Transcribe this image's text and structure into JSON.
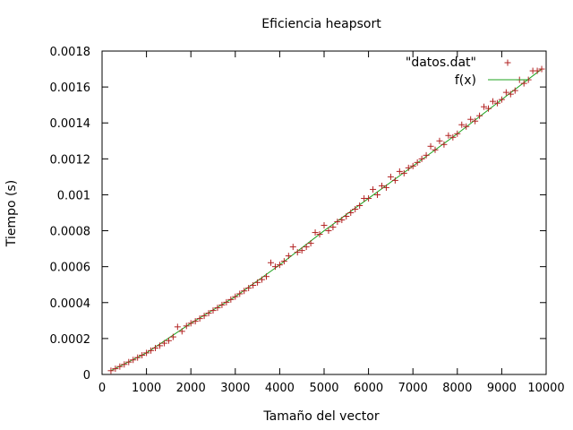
{
  "chart_data": {
    "type": "scatter",
    "title": "Eficiencia heapsort",
    "xlabel": "Tamaño del vector",
    "ylabel": "Tiempo (s)",
    "xlim": [
      0,
      10000
    ],
    "ylim": [
      0,
      0.0018
    ],
    "xticks": [
      "0",
      "1000",
      "2000",
      "3000",
      "4000",
      "5000",
      "6000",
      "7000",
      "8000",
      "9000",
      "10000"
    ],
    "yticks": [
      "0",
      "0.0002",
      "0.0004",
      "0.0006",
      "0.0008",
      "0.001",
      "0.0012",
      "0.0014",
      "0.0016",
      "0.0018"
    ],
    "grid": false,
    "legend_position": "top-right",
    "colors": {
      "points": "#b22222",
      "fit": "#1fa31f"
    },
    "series": [
      {
        "name": "\"datos.dat\"",
        "kind": "points",
        "marker": "plus",
        "x": [
          200,
          300,
          400,
          500,
          600,
          700,
          800,
          900,
          1000,
          1100,
          1200,
          1300,
          1400,
          1500,
          1600,
          1700,
          1800,
          1900,
          2000,
          2100,
          2200,
          2300,
          2400,
          2500,
          2600,
          2700,
          2800,
          2900,
          3000,
          3100,
          3200,
          3300,
          3400,
          3500,
          3600,
          3700,
          3800,
          3900,
          4000,
          4100,
          4200,
          4300,
          4400,
          4500,
          4600,
          4700,
          4800,
          4900,
          5000,
          5100,
          5200,
          5300,
          5400,
          5500,
          5600,
          5700,
          5800,
          5900,
          6000,
          6100,
          6200,
          6300,
          6400,
          6500,
          6600,
          6700,
          6800,
          6900,
          7000,
          7100,
          7200,
          7300,
          7400,
          7500,
          7600,
          7700,
          7800,
          7900,
          8000,
          8100,
          8200,
          8300,
          8400,
          8500,
          8600,
          8700,
          8800,
          8900,
          9000,
          9100,
          9200,
          9300,
          9400,
          9500,
          9600,
          9700,
          9800,
          9900
        ],
        "y": [
          2.1e-05,
          3.2e-05,
          4.4e-05,
          5.6e-05,
          6.9e-05,
          8.1e-05,
          9.4e-05,
          0.000107,
          0.00012,
          0.000133,
          0.000147,
          0.00016,
          0.000174,
          0.000188,
          0.000209,
          0.000265,
          0.00024,
          0.00027,
          0.000285,
          0.000296,
          0.000311,
          0.000326,
          0.000341,
          0.000356,
          0.000371,
          0.000387,
          0.000402,
          0.000417,
          0.000433,
          0.000449,
          0.000465,
          0.000481,
          0.000496,
          0.000512,
          0.000528,
          0.000545,
          0.000622,
          0.0006,
          0.00061,
          0.00063,
          0.00066,
          0.00071,
          0.00068,
          0.00069,
          0.00071,
          0.00073,
          0.00079,
          0.00078,
          0.00083,
          0.0008,
          0.00082,
          0.00085,
          0.00086,
          0.00088,
          0.0009,
          0.00092,
          0.00094,
          0.00098,
          0.00098,
          0.00103,
          0.001,
          0.00105,
          0.00104,
          0.0011,
          0.00108,
          0.00113,
          0.00112,
          0.00115,
          0.00116,
          0.00118,
          0.0012,
          0.00122,
          0.00127,
          0.00125,
          0.0013,
          0.00128,
          0.00133,
          0.00132,
          0.00134,
          0.00139,
          0.00138,
          0.00142,
          0.00141,
          0.00144,
          0.00149,
          0.00148,
          0.00152,
          0.00151,
          0.00153,
          0.00157,
          0.00156,
          0.00158,
          0.00164,
          0.00162,
          0.00164,
          0.00169,
          0.00169,
          0.0017
        ]
      },
      {
        "name": "f(x)",
        "kind": "line",
        "x": [
          200,
          1000,
          2000,
          3000,
          4000,
          5000,
          6000,
          7000,
          8000,
          9000,
          9900
        ],
        "y": [
          2.1e-05,
          0.00012,
          0.000285,
          0.000433,
          0.00061,
          0.0008,
          0.00098,
          0.00116,
          0.00134,
          0.00153,
          0.0017
        ]
      }
    ]
  }
}
